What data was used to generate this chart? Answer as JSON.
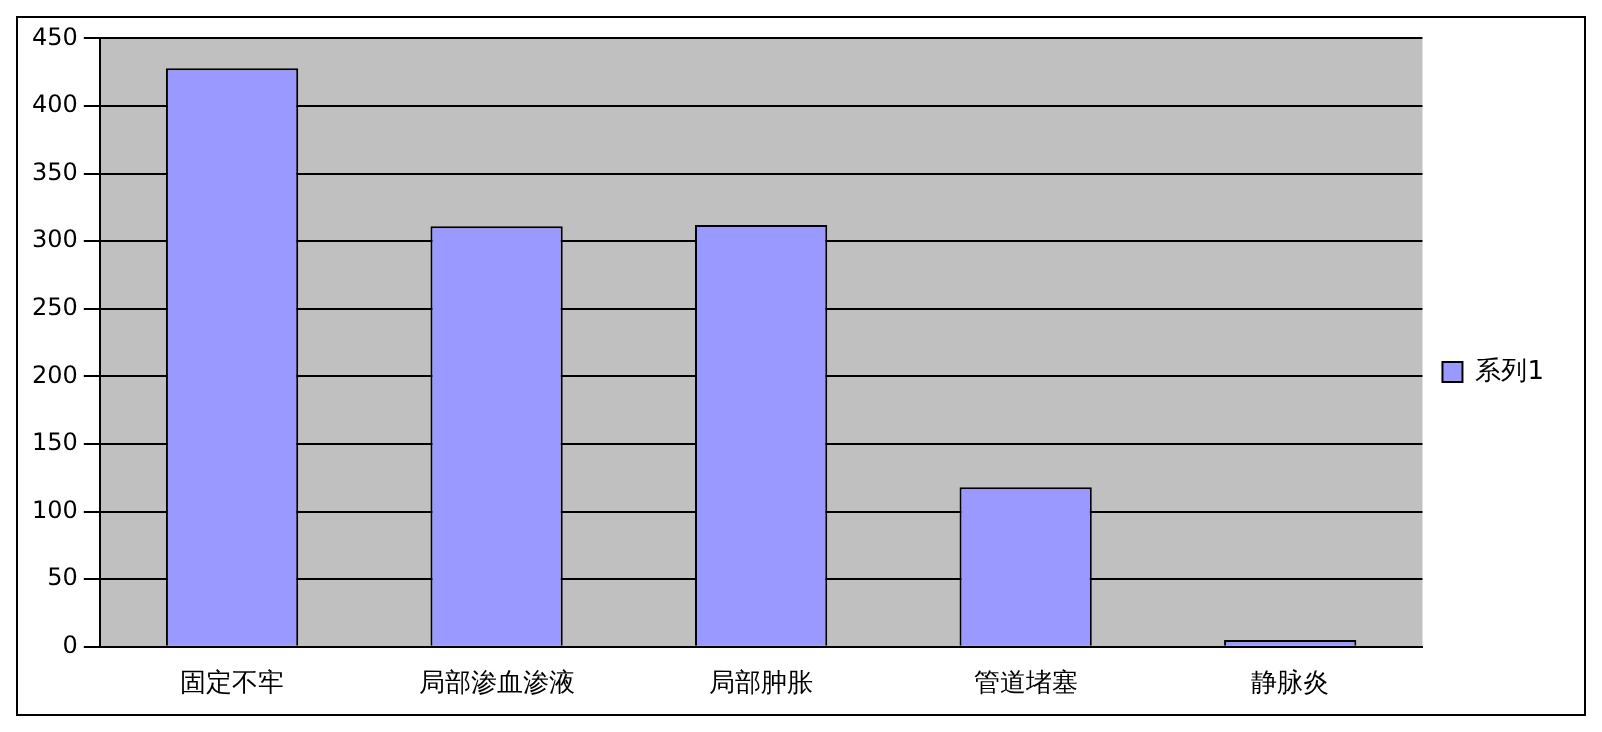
{
  "chart_data": {
    "type": "bar",
    "categories": [
      "固定不牢",
      "局部渗血渗液",
      "局部肿胀",
      "管道堵塞",
      "静脉炎"
    ],
    "series": [
      {
        "name": "系列1",
        "color": "#9999ff",
        "values": [
          428,
          311,
          312,
          118,
          5
        ]
      }
    ],
    "ylim": [
      0,
      450
    ],
    "yticks": [
      0,
      50,
      100,
      150,
      200,
      250,
      300,
      350,
      400,
      450
    ],
    "grid": "y",
    "legend": "right"
  }
}
